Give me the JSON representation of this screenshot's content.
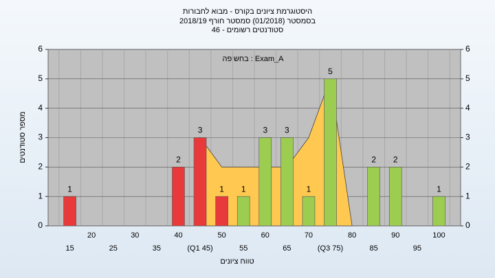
{
  "chart_data": {
    "type": "bar",
    "title": "היסטוגרמת ציונים בקורס - מבוא לחבורות",
    "subtitle": "בסמסטר  (01/2018)  סמסטר חורף 2018/19",
    "subtitle2": "סטודנטים רשומים - 46",
    "annotation": "בחשיפה : Exam_A",
    "y_label": "מספר סטודנטים",
    "x_label": "טווח ציונים",
    "categories": [
      "15",
      "20",
      "25",
      "30",
      "35",
      "40",
      "(Q1 45)",
      "50",
      "55",
      "60",
      "65",
      "70",
      "(Q3 75)",
      "80",
      "85",
      "90",
      "95",
      "100"
    ],
    "values": [
      1,
      0,
      0,
      0,
      0,
      2,
      3,
      1,
      1,
      3,
      3,
      1,
      5,
      0,
      2,
      2,
      0,
      1
    ],
    "colors": [
      "#e83a3a",
      "#e83a3a",
      "#e83a3a",
      "#e83a3a",
      "#e83a3a",
      "#e83a3a",
      "#e83a3a",
      "#e83a3a",
      "#9ccc50",
      "#9ccc50",
      "#9ccc50",
      "#9ccc50",
      "#9ccc50",
      "#9ccc50",
      "#9ccc50",
      "#9ccc50",
      "#9ccc50",
      "#9ccc50"
    ],
    "area": {
      "values": [
        null,
        null,
        null,
        null,
        null,
        null,
        3,
        2,
        2,
        2,
        2,
        3,
        5,
        0,
        null,
        null,
        null,
        null
      ],
      "color": "#ffc850"
    },
    "ylim": [
      0,
      6
    ],
    "yticks": [
      0,
      1,
      2,
      3,
      4,
      5,
      6
    ],
    "y2lim": [
      0,
      6
    ],
    "y2ticks": [
      0,
      1,
      2,
      3,
      4,
      5,
      6
    ],
    "grid": true
  }
}
